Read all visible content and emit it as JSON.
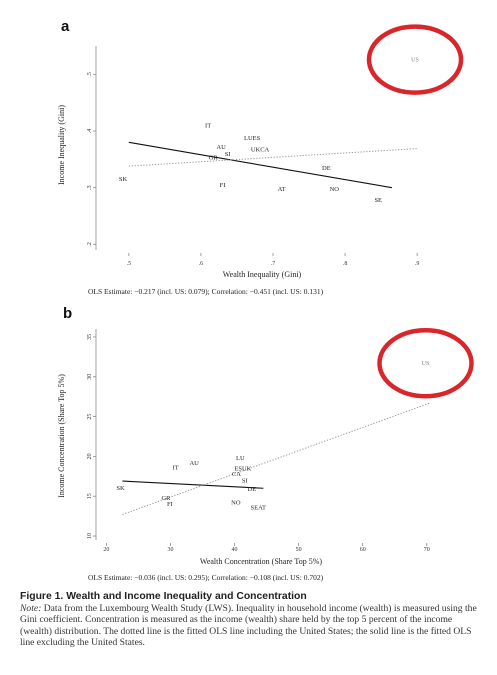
{
  "chart_data": [
    {
      "panel": "a",
      "type": "scatter",
      "xlabel": "Wealth Inequality (Gini)",
      "ylabel": "Income Inequality (Gini)",
      "xlim": [
        0.46,
        0.94
      ],
      "ylim": [
        0.19,
        0.55
      ],
      "xticks": [
        0.5,
        0.6,
        0.7,
        0.8,
        0.9
      ],
      "xtick_labels": [
        ".5",
        ".6",
        ".7",
        ".8",
        ".9"
      ],
      "yticks": [
        0.2,
        0.3,
        0.4,
        0.5
      ],
      "ytick_labels": [
        ".2",
        ".3",
        ".4",
        ".5"
      ],
      "points": [
        {
          "label": "US",
          "x": 0.897,
          "y": 0.526,
          "highlight": true
        },
        {
          "label": "IT",
          "x": 0.61,
          "y": 0.41
        },
        {
          "label": "LUES",
          "x": 0.671,
          "y": 0.388
        },
        {
          "label": "AU",
          "x": 0.628,
          "y": 0.372
        },
        {
          "label": "UKCA",
          "x": 0.682,
          "y": 0.367
        },
        {
          "label": "SI",
          "x": 0.637,
          "y": 0.359
        },
        {
          "label": "GR",
          "x": 0.617,
          "y": 0.353
        },
        {
          "label": "DE",
          "x": 0.774,
          "y": 0.335
        },
        {
          "label": "SK",
          "x": 0.492,
          "y": 0.315
        },
        {
          "label": "FI",
          "x": 0.63,
          "y": 0.305
        },
        {
          "label": "AT",
          "x": 0.712,
          "y": 0.298
        },
        {
          "label": "NO",
          "x": 0.785,
          "y": 0.298
        },
        {
          "label": "SE",
          "x": 0.846,
          "y": 0.278
        }
      ],
      "lines": [
        {
          "style": "solid",
          "includes_us": false,
          "x": [
            0.5,
            0.865
          ],
          "y": [
            0.38,
            0.3
          ]
        },
        {
          "style": "dotted",
          "includes_us": true,
          "x": [
            0.5,
            0.9
          ],
          "y": [
            0.338,
            0.369
          ]
        }
      ],
      "estimate_text": "OLS Estimate: −0.217 (incl. US: 0.079); Correlation: −0.451 (incl. US: 0.131)"
    },
    {
      "panel": "b",
      "type": "scatter",
      "xlabel": "Wealth Concentration (Share Top 5%)",
      "ylabel": "Income Concentration (Share Top 5%)",
      "xlim": [
        19,
        73
      ],
      "ylim": [
        9.5,
        36
      ],
      "xticks": [
        20,
        30,
        40,
        50,
        60,
        70
      ],
      "xtick_labels": [
        "20",
        "30",
        "40",
        "50",
        "60",
        "70"
      ],
      "yticks": [
        10,
        15,
        20,
        25,
        30,
        35
      ],
      "ytick_labels": [
        "10",
        "15",
        "20",
        "25",
        "30",
        "35"
      ],
      "points": [
        {
          "label": "US",
          "x": 69.8,
          "y": 31.7,
          "highlight": true
        },
        {
          "label": "AU",
          "x": 33.7,
          "y": 19.2
        },
        {
          "label": "LU",
          "x": 40.9,
          "y": 19.8
        },
        {
          "label": "IT",
          "x": 30.8,
          "y": 18.6
        },
        {
          "label": "ESUK",
          "x": 41.3,
          "y": 18.5
        },
        {
          "label": "CA",
          "x": 40.3,
          "y": 17.8
        },
        {
          "label": "SI",
          "x": 41.6,
          "y": 17.0
        },
        {
          "label": "SK",
          "x": 22.2,
          "y": 16.0
        },
        {
          "label": "DE",
          "x": 42.7,
          "y": 15.9
        },
        {
          "label": "GR",
          "x": 29.3,
          "y": 14.8
        },
        {
          "label": "FI",
          "x": 29.9,
          "y": 14.0
        },
        {
          "label": "NO",
          "x": 40.2,
          "y": 14.2
        },
        {
          "label": "SEAT",
          "x": 43.7,
          "y": 13.6
        }
      ],
      "lines": [
        {
          "style": "solid",
          "includes_us": false,
          "x": [
            22.5,
            44.5
          ],
          "y": [
            16.9,
            16.0
          ]
        },
        {
          "style": "dotted",
          "includes_us": true,
          "x": [
            22.5,
            70.5
          ],
          "y": [
            12.7,
            26.7
          ]
        }
      ],
      "estimate_text": "OLS Estimate: −0.036 (incl. US: 0.295); Correlation: −0.108 (incl. US: 0.702)"
    }
  ],
  "caption": {
    "title": "Figure 1.  Wealth and Income Inequality and Concentration",
    "note_label": "Note:",
    "note_text": " Data from the Luxembourg Wealth Study (LWS). Inequality in household income (wealth) is measured using the Gini coefficient. Concentration is measured as the income (wealth) share held by the top 5 percent of the income (wealth) distribution. The dotted line is the fitted OLS line including the United States; the solid line is the fitted OLS line excluding the United States."
  },
  "colors": {
    "highlight_ring": "#d8262b",
    "fit_solid": "#111111",
    "fit_dotted": "#999999",
    "us_label": "#888888"
  }
}
